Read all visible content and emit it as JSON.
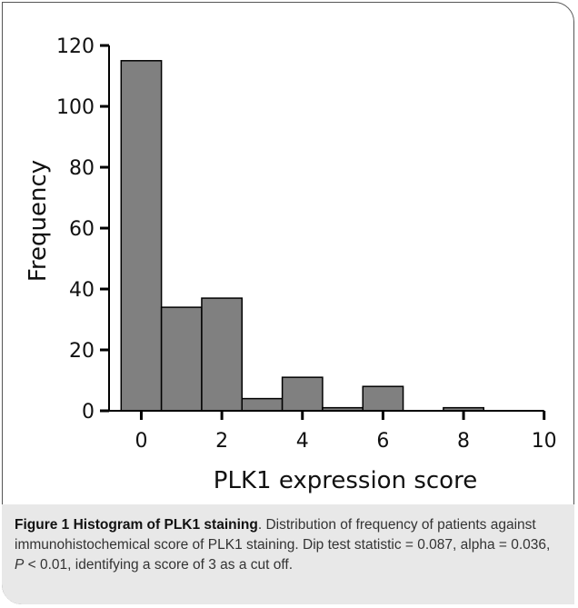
{
  "chart_data": {
    "type": "bar",
    "subtype": "histogram",
    "xlabel": "PLK1 expression score",
    "ylabel": "Frequency",
    "bins": [
      {
        "start": -0.5,
        "end": 0.5,
        "value": 115
      },
      {
        "start": 0.5,
        "end": 1.5,
        "value": 34
      },
      {
        "start": 1.5,
        "end": 2.5,
        "value": 37
      },
      {
        "start": 2.5,
        "end": 3.5,
        "value": 4
      },
      {
        "start": 3.5,
        "end": 4.5,
        "value": 11
      },
      {
        "start": 4.5,
        "end": 5.5,
        "value": 1
      },
      {
        "start": 5.5,
        "end": 6.5,
        "value": 8
      },
      {
        "start": 6.5,
        "end": 7.5,
        "value": 0
      },
      {
        "start": 7.5,
        "end": 8.5,
        "value": 1
      },
      {
        "start": 8.5,
        "end": 9.5,
        "value": 0
      }
    ],
    "xticks": [
      0,
      2,
      4,
      6,
      8,
      10
    ],
    "yticks": [
      0,
      20,
      40,
      60,
      80,
      100,
      120
    ],
    "xlim": [
      -0.8,
      10.3
    ],
    "ylim": [
      0,
      123
    ],
    "grid": false,
    "bar_color": "#808080",
    "bar_edge_color": "#000000"
  },
  "caption": {
    "label": "Figure 1 Histogram of PLK1 staining",
    "text": ". Distribution of frequency of patients against immunohistochemical score of PLK1 staining. Dip test statistic = 0.087, alpha = 0.036, ",
    "p_symbol": "P",
    "text_end": " < 0.01, identifying a score of 3 as a cut off."
  }
}
